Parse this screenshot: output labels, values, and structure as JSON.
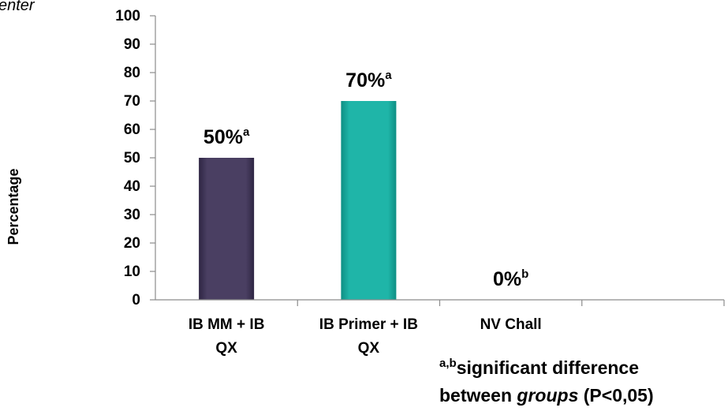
{
  "corner_text": "enter",
  "chart_data": {
    "type": "bar",
    "categories": [
      "IB MM + IB QX",
      "IB Primer + IB QX",
      "NV Chall"
    ],
    "category_lines": [
      [
        "IB MM + IB",
        "QX"
      ],
      [
        "IB Primer + IB",
        "QX"
      ],
      [
        "NV Chall"
      ]
    ],
    "values": [
      50,
      70,
      0
    ],
    "data_labels": [
      {
        "text": "50%",
        "sup": "a"
      },
      {
        "text": "70%",
        "sup": "a"
      },
      {
        "text": "0%",
        "sup": "b"
      }
    ],
    "ylabel": "Percentage",
    "ylim": [
      0,
      100
    ],
    "yticks": [
      "0",
      "10",
      "20",
      "30",
      "40",
      "50",
      "60",
      "70",
      "80",
      "90",
      "100"
    ],
    "grid": false,
    "colors": [
      "#4a3f62",
      "#1fb5a8",
      "#ffffff"
    ],
    "gradient_dark": [
      "#2e2543",
      "#0e8f84",
      "#ffffff"
    ]
  },
  "footnote": {
    "sup": "a,b",
    "line1": "significant difference",
    "line2_pre": "between ",
    "line2_italic": "groups",
    "line2_post": " (P<0,05)"
  }
}
